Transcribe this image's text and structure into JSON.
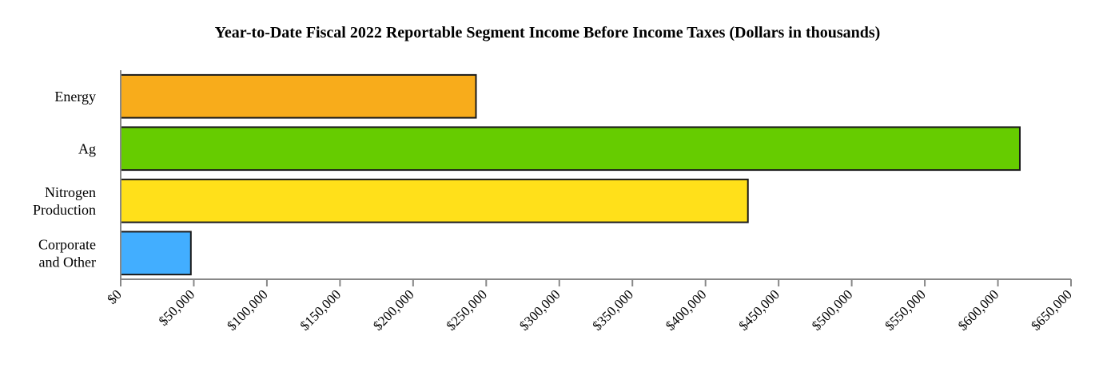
{
  "chart_data": {
    "type": "bar",
    "orientation": "horizontal",
    "title": "Year-to-Date Fiscal 2022 Reportable Segment Income Before Income Taxes (Dollars in thousands)",
    "xlabel": "",
    "ylabel": "",
    "categories": [
      [
        "Energy"
      ],
      [
        "Ag"
      ],
      [
        "Nitrogen",
        "Production"
      ],
      [
        "Corporate",
        "and Other"
      ]
    ],
    "values": [
      243000,
      615000,
      429000,
      48000
    ],
    "colors": [
      "#F8AC1B",
      "#66CC00",
      "#FFE01A",
      "#42AEFF"
    ],
    "xlim": [
      0,
      650000
    ],
    "xticks": [
      0,
      50000,
      100000,
      150000,
      200000,
      250000,
      300000,
      350000,
      400000,
      450000,
      500000,
      550000,
      600000,
      650000
    ],
    "xtick_labels": [
      "$0",
      "$50,000",
      "$100,000",
      "$150,000",
      "$200,000",
      "$250,000",
      "$300,000",
      "$350,000",
      "$400,000",
      "$450,000",
      "$500,000",
      "$550,000",
      "$600,000",
      "$650,000"
    ],
    "grid": false,
    "legend": "none"
  }
}
